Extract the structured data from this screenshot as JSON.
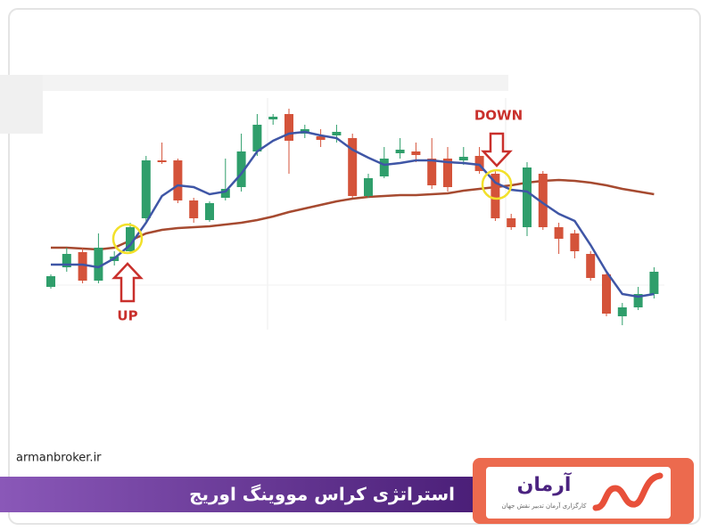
{
  "chart_data": {
    "type": "candlestick",
    "open": [
      78,
      100,
      117,
      85,
      107,
      118,
      155,
      220,
      220,
      175,
      153,
      178,
      190,
      230,
      266,
      272,
      250,
      247,
      248,
      245,
      180,
      202,
      228,
      230,
      222,
      222,
      220,
      225,
      205,
      155,
      145,
      205,
      145,
      138,
      115,
      92,
      45,
      55,
      70
    ],
    "close": [
      90,
      115,
      85,
      122,
      112,
      145,
      220,
      218,
      175,
      155,
      172,
      188,
      230,
      260,
      269,
      242,
      255,
      243,
      252,
      180,
      200,
      222,
      232,
      226,
      192,
      190,
      224,
      208,
      155,
      145,
      212,
      145,
      132,
      118,
      88,
      48,
      55,
      70,
      95
    ],
    "high": [
      92,
      122,
      122,
      138,
      118,
      150,
      225,
      240,
      222,
      178,
      174,
      222,
      250,
      272,
      272,
      278,
      260,
      255,
      260,
      250,
      205,
      235,
      245,
      240,
      245,
      235,
      235,
      235,
      210,
      160,
      218,
      208,
      150,
      142,
      118,
      95,
      60,
      78,
      100
    ],
    "low": [
      76,
      95,
      82,
      82,
      102,
      115,
      150,
      216,
      172,
      150,
      151,
      175,
      185,
      225,
      260,
      205,
      245,
      235,
      240,
      178,
      178,
      200,
      222,
      218,
      188,
      185,
      215,
      205,
      152,
      142,
      135,
      142,
      115,
      110,
      85,
      45,
      35,
      52,
      65
    ],
    "up_color": "#2f9e6b",
    "down_color": "#d4533a",
    "series": [
      {
        "color": "#3f56a6",
        "values": [
          103,
          103,
          103,
          100,
          110,
          125,
          150,
          180,
          192,
          190,
          182,
          185,
          205,
          230,
          242,
          250,
          252,
          248,
          245,
          232,
          223,
          215,
          217,
          220,
          220,
          218,
          217,
          215,
          195,
          187,
          185,
          172,
          160,
          152,
          125,
          95,
          70,
          67,
          70
        ]
      },
      {
        "color": "#a64a30",
        "values": [
          122,
          122,
          121,
          120,
          122,
          130,
          138,
          142,
          144,
          145,
          146,
          148,
          150,
          153,
          157,
          162,
          166,
          170,
          174,
          177,
          179,
          180,
          181,
          181,
          182,
          183,
          186,
          188,
          190,
          192,
          195,
          197,
          198,
          197,
          195,
          192,
          188,
          185,
          182
        ]
      }
    ],
    "annotations": {
      "up": "UP",
      "down": "DOWN"
    }
  },
  "footer": {
    "site": "armanbroker.ir",
    "title": "استراتژی کراس مووینگ اوریج",
    "logo": "آرمان",
    "tagline": "کارگزاری آرمان تدبیر نقش جهان"
  }
}
